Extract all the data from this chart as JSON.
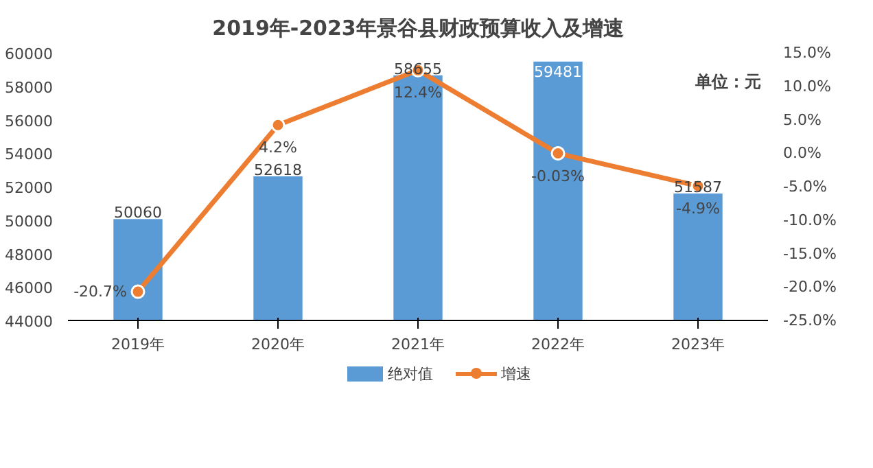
{
  "chart_data": {
    "type": "bar",
    "title": "2019年-2023年景谷县财政预算收入及增速",
    "annotations": [
      "单位：元"
    ],
    "categories": [
      "2019年",
      "2020年",
      "2021年",
      "2022年",
      "2023年"
    ],
    "series": [
      {
        "name": "绝对值",
        "type": "bar",
        "color": "#5b9bd5",
        "values": [
          50060,
          52618,
          58655,
          59481,
          51587
        ],
        "value_labels": [
          "50060",
          "52618",
          "58655",
          "59481",
          "51587"
        ]
      },
      {
        "name": "增速",
        "type": "line",
        "axis": "y2",
        "color": "#ed7d31",
        "values": [
          -20.7,
          4.2,
          12.4,
          -0.03,
          -4.9
        ],
        "value_labels": [
          "-20.7%",
          "4.2%",
          "12.4%",
          "-0.03%",
          "-4.9%"
        ]
      }
    ],
    "ylim": [
      44000,
      60000
    ],
    "yticks": [
      44000,
      46000,
      48000,
      50000,
      52000,
      54000,
      56000,
      58000,
      60000
    ],
    "y2lim": [
      -25,
      15
    ],
    "y2ticks": [
      {
        "value": -25,
        "label": "-25.0%"
      },
      {
        "value": -20,
        "label": "-20.0%"
      },
      {
        "value": -15,
        "label": "-15.0%"
      },
      {
        "value": -10,
        "label": "-10.0%"
      },
      {
        "value": -5,
        "label": "-5.0%"
      },
      {
        "value": 0,
        "label": "0.0%"
      },
      {
        "value": 5,
        "label": "5.0%"
      },
      {
        "value": 10,
        "label": "10.0%"
      },
      {
        "value": 15,
        "label": "15.0%"
      }
    ],
    "grid": false,
    "legend": "bottom",
    "marker": "circle",
    "line_style": "solid"
  }
}
